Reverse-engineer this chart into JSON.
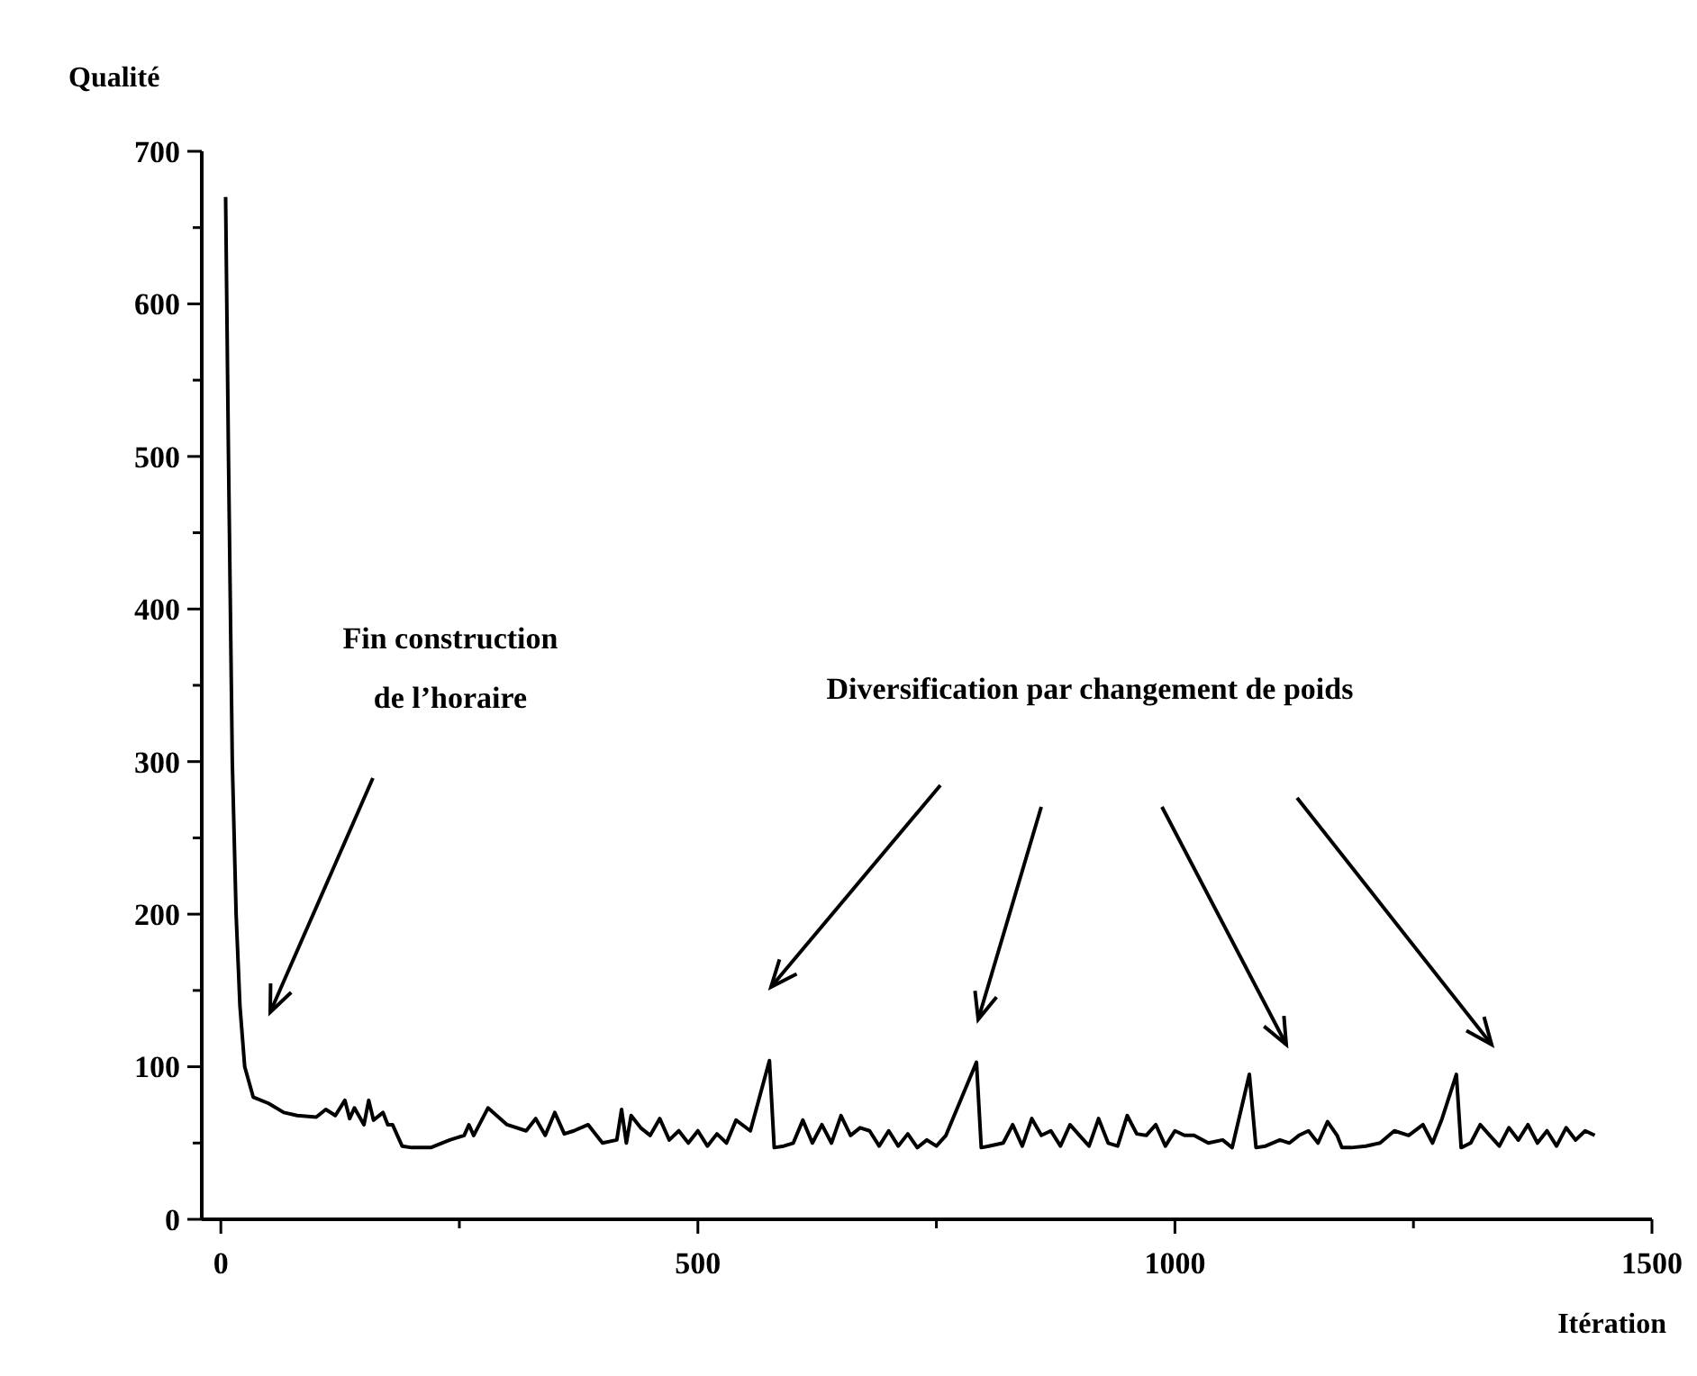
{
  "chart_data": {
    "type": "line",
    "xlabel": "Itération",
    "ylabel": "Qualité",
    "xlim": [
      -20,
      1500
    ],
    "ylim": [
      0,
      700
    ],
    "xticks": [
      0,
      {
        "value": 250,
        "label": null
      },
      500,
      {
        "value": 750,
        "label": null
      },
      1000,
      {
        "value": 1250,
        "label": null
      },
      1500
    ],
    "yticks": [
      0,
      {
        "value": 50,
        "label": null
      },
      100,
      {
        "value": 150,
        "label": null
      },
      200,
      {
        "value": 250,
        "label": null
      },
      300,
      {
        "value": 350,
        "label": null
      },
      400,
      {
        "value": 450,
        "label": null
      },
      500,
      {
        "value": 550,
        "label": null
      },
      600,
      {
        "value": 650,
        "label": null
      },
      700
    ],
    "grid": false,
    "marker": "none",
    "line_style": "solid",
    "annotations": [
      "Fin construction\nde l’horaire",
      "Diversification par changement de poids"
    ],
    "series": [
      {
        "color": "#000000",
        "x": [
          5,
          8,
          12,
          16,
          20,
          25,
          34,
          50,
          66,
          80,
          100,
          110,
          120,
          130,
          135,
          140,
          150,
          155,
          160,
          170,
          175,
          180,
          190,
          200,
          220,
          240,
          255,
          260,
          265,
          280,
          300,
          320,
          330,
          340,
          350,
          360,
          370,
          385,
          400,
          415,
          420,
          425,
          430,
          440,
          450,
          460,
          470,
          480,
          490,
          500,
          510,
          520,
          530,
          540,
          555,
          575,
          580,
          590,
          600,
          610,
          620,
          630,
          640,
          650,
          660,
          670,
          680,
          690,
          700,
          710,
          720,
          730,
          740,
          750,
          760,
          792,
          797,
          805,
          820,
          830,
          840,
          850,
          860,
          870,
          880,
          890,
          900,
          910,
          920,
          930,
          940,
          950,
          960,
          970,
          980,
          990,
          1000,
          1010,
          1020,
          1035,
          1050,
          1060,
          1078,
          1085,
          1095,
          1110,
          1120,
          1130,
          1140,
          1150,
          1160,
          1170,
          1175,
          1185,
          1200,
          1215,
          1230,
          1245,
          1260,
          1270,
          1280,
          1295,
          1300,
          1310,
          1320,
          1330,
          1340,
          1350,
          1360,
          1370,
          1380,
          1390,
          1400,
          1410,
          1420,
          1430,
          1440
        ],
        "values": [
          670,
          500,
          300,
          200,
          140,
          100,
          80,
          76,
          70,
          68,
          67,
          72,
          68,
          78,
          66,
          73,
          62,
          78,
          65,
          70,
          62,
          62,
          48,
          47,
          47,
          52,
          55,
          62,
          55,
          73,
          62,
          58,
          66,
          55,
          70,
          56,
          58,
          62,
          50,
          52,
          72,
          50,
          68,
          60,
          55,
          66,
          52,
          58,
          50,
          58,
          48,
          56,
          50,
          65,
          58,
          104,
          47,
          48,
          50,
          65,
          50,
          62,
          50,
          68,
          55,
          60,
          58,
          48,
          58,
          48,
          56,
          47,
          52,
          48,
          55,
          103,
          47,
          48,
          50,
          62,
          48,
          66,
          55,
          58,
          48,
          62,
          55,
          48,
          66,
          50,
          48,
          68,
          56,
          55,
          62,
          48,
          58,
          55,
          55,
          50,
          52,
          47,
          95,
          47,
          48,
          52,
          50,
          55,
          58,
          50,
          64,
          55,
          47,
          47,
          48,
          50,
          58,
          55,
          62,
          50,
          66,
          95,
          47,
          50,
          62,
          55,
          48,
          60,
          52,
          62,
          50,
          58,
          48,
          60,
          52,
          58,
          55
        ]
      }
    ]
  }
}
